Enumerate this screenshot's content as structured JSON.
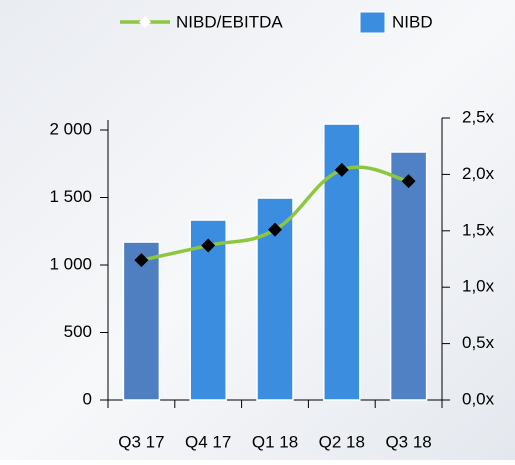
{
  "chart_data": {
    "type": "bar-line",
    "categories": [
      "Q3 17",
      "Q4 17",
      "Q1 18",
      "Q2 18",
      "Q3 18"
    ],
    "series": [
      {
        "name": "NIBD",
        "type": "bar",
        "color": "#3b8de0",
        "colors": [
          "#4f7fc0",
          "#3b8de0",
          "#3b8de0",
          "#3b8de0",
          "#4f81c4"
        ],
        "values": [
          1170,
          1333,
          1496,
          2044,
          1837
        ]
      },
      {
        "name": "NIBD/EBITDA",
        "type": "line",
        "axis": "y2",
        "color": "#8dc63f",
        "marker_color": "#000000",
        "values": [
          1.24,
          1.37,
          1.51,
          2.04,
          1.94
        ]
      }
    ],
    "ylim": [
      0,
      2000
    ],
    "yticks": [
      0,
      500,
      {
        "value": 1000,
        "label": "1 000"
      },
      {
        "value": 1500,
        "label": "1 500"
      },
      {
        "value": 2000,
        "label": "2 000"
      }
    ],
    "y2lim": [
      0,
      2.5
    ],
    "y2ticks": [
      {
        "value": 0,
        "label": "0,0x"
      },
      {
        "value": 0.5,
        "label": "0,5x"
      },
      {
        "value": 1,
        "label": "1,0x"
      },
      {
        "value": 1.5,
        "label": "1,5x"
      },
      {
        "value": 2,
        "label": "2,0x"
      },
      {
        "value": 2.5,
        "label": "2,5x"
      }
    ],
    "legend": "top"
  }
}
